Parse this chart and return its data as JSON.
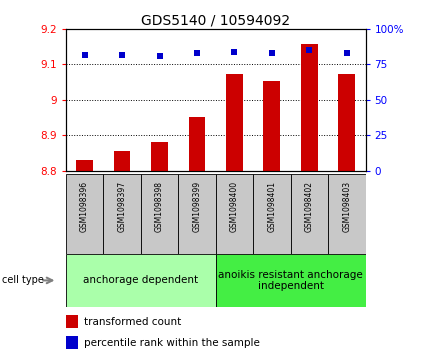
{
  "title": "GDS5140 / 10594092",
  "samples": [
    "GSM1098396",
    "GSM1098397",
    "GSM1098398",
    "GSM1098399",
    "GSM1098400",
    "GSM1098401",
    "GSM1098402",
    "GSM1098403"
  ],
  "bar_values": [
    8.83,
    8.855,
    8.882,
    8.952,
    9.072,
    9.052,
    9.158,
    9.072
  ],
  "dot_values": [
    82,
    82,
    81,
    83,
    84,
    83,
    85,
    83
  ],
  "ylim_left": [
    8.8,
    9.2
  ],
  "ylim_right": [
    0,
    100
  ],
  "bar_color": "#cc0000",
  "dot_color": "#0000cc",
  "group1_label": "anchorage dependent",
  "group2_label": "anoikis resistant anchorage\nindependent",
  "group1_color": "#aaffaa",
  "group2_color": "#44ee44",
  "group1_indices": [
    0,
    1,
    2,
    3
  ],
  "group2_indices": [
    4,
    5,
    6,
    7
  ],
  "cell_type_label": "cell type",
  "legend1_label": "transformed count",
  "legend2_label": "percentile rank within the sample",
  "title_fontsize": 10,
  "tick_fontsize": 7.5,
  "sample_fontsize": 5.5,
  "group_fontsize": 7.5,
  "legend_fontsize": 7.5,
  "left_yticks": [
    8.8,
    8.9,
    9.0,
    9.1,
    9.2
  ],
  "left_yticklabels": [
    "8.8",
    "8.9",
    "9",
    "9.1",
    "9.2"
  ],
  "right_yticks": [
    0,
    25,
    50,
    75,
    100
  ],
  "right_yticklabels": [
    "0",
    "25",
    "50",
    "75",
    "100%"
  ]
}
